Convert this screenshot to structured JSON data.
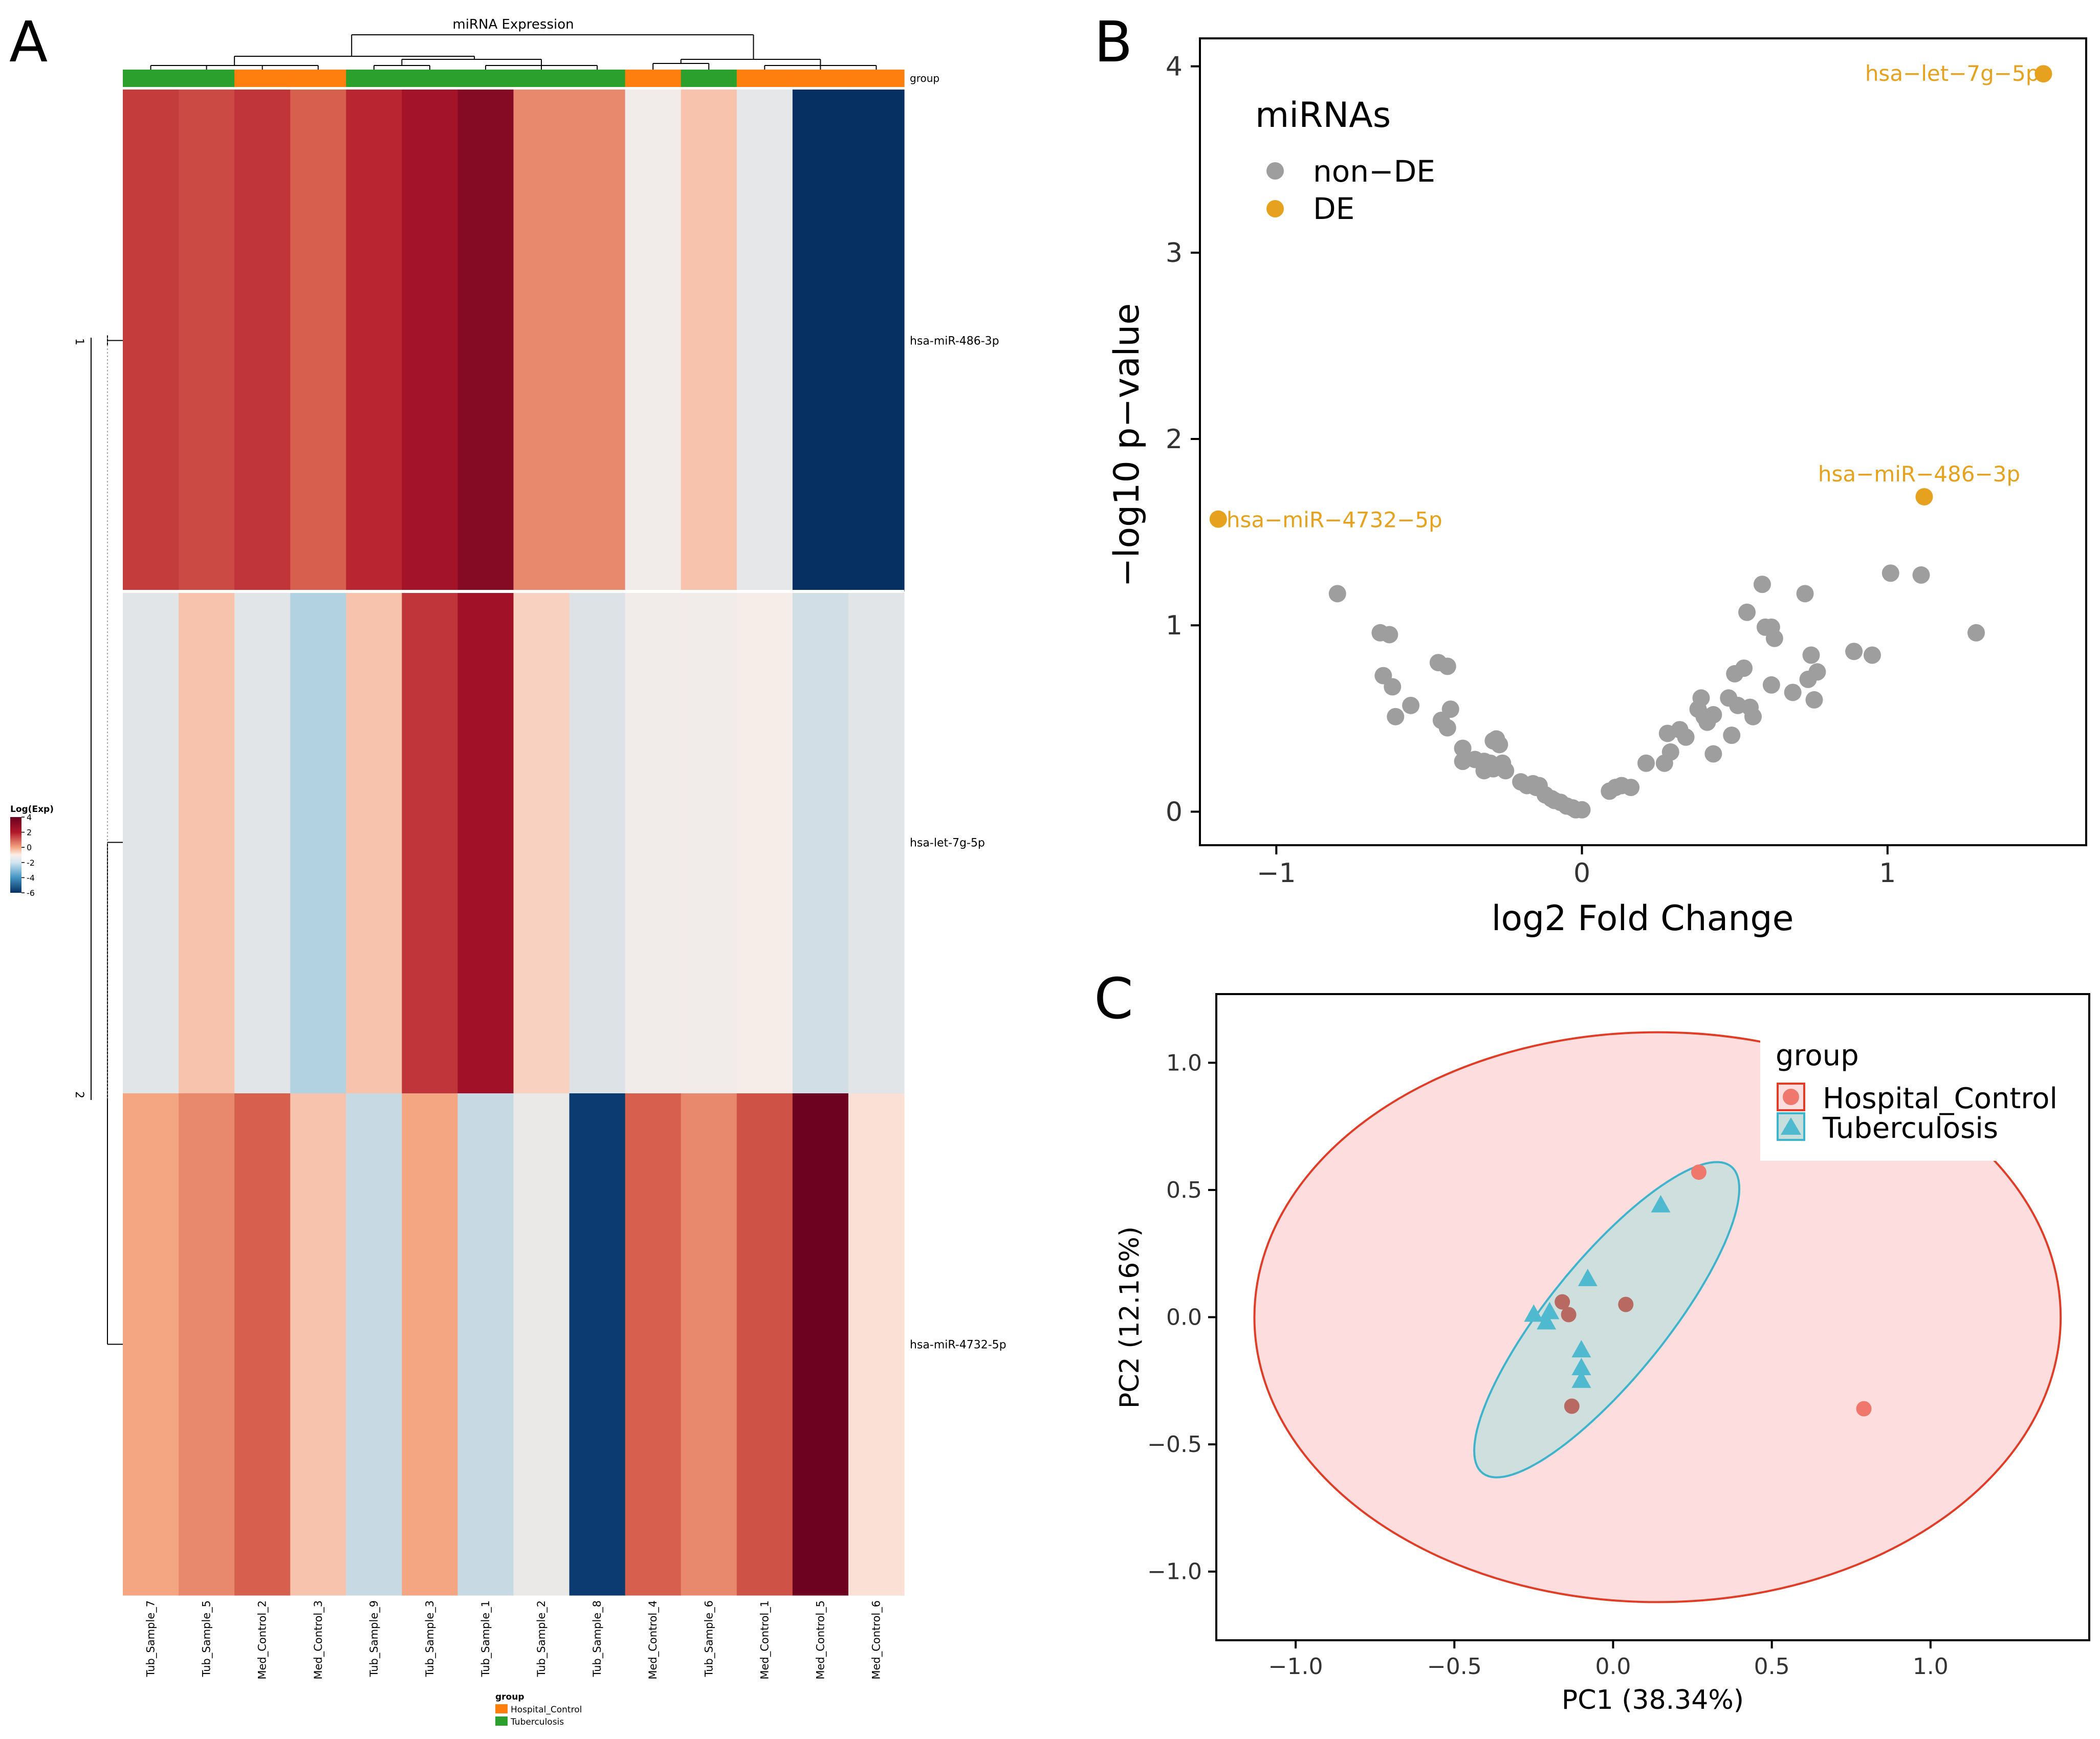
{
  "panel_labels": {
    "a": "A",
    "b": "B",
    "c": "C"
  },
  "colors": {
    "group_Hospital_Control": "#FF7F0E",
    "group_Tuberculosis": "#2CA02C",
    "de": "#E6A21E",
    "non_de": "#9E9E9E",
    "pca_hospital": "#F0776B",
    "pca_tuberculosis": "#4FB9CF",
    "ellipse_hospital_stroke": "#E03C26",
    "ellipse_hospital_fill": "#FDDDDE",
    "ellipse_tb_stroke": "#3DB3CC",
    "ellipse_tb_fill": "#C6DFDD"
  },
  "chart_data": [
    {
      "type": "heatmap",
      "title": "miRNA Expression",
      "group_annotation_label": "group",
      "columns": [
        "Tub_Sample_7",
        "Tub_Sample_5",
        "Med_Control_2",
        "Med_Control_3",
        "Tub_Sample_9",
        "Tub_Sample_3",
        "Tub_Sample_1",
        "Tub_Sample_2",
        "Tub_Sample_8",
        "Med_Control_4",
        "Tub_Sample_6",
        "Med_Control_1",
        "Med_Control_5",
        "Med_Control_6"
      ],
      "column_groups": [
        "Tuberculosis",
        "Tuberculosis",
        "Hospital_Control",
        "Hospital_Control",
        "Tuberculosis",
        "Tuberculosis",
        "Tuberculosis",
        "Tuberculosis",
        "Tuberculosis",
        "Hospital_Control",
        "Tuberculosis",
        "Hospital_Control",
        "Hospital_Control",
        "Hospital_Control"
      ],
      "rows": [
        "hsa-miR-486-3p",
        "hsa-let-7g-5p",
        "hsa-miR-4732-5p"
      ],
      "row_split_labels": [
        "1",
        "2"
      ],
      "values": [
        [
          2.5,
          2.3,
          2.6,
          2.0,
          2.8,
          3.6,
          4.8,
          1.4,
          1.4,
          -0.2,
          0.6,
          -0.4,
          -6.0,
          -6.0
        ],
        [
          -0.5,
          0.6,
          -0.5,
          -1.4,
          0.6,
          2.6,
          3.7,
          0.4,
          -0.6,
          -0.2,
          -0.2,
          -0.1,
          -0.8,
          -0.5
        ],
        [
          1.0,
          1.4,
          2.0,
          0.6,
          -1.0,
          1.0,
          -1.0,
          -0.3,
          -5.6,
          2.0,
          1.4,
          2.2,
          5.8,
          0.2
        ]
      ],
      "legend": {
        "title": "Log(Exp)",
        "ticks": [
          4,
          2,
          0,
          -2,
          -4,
          -6
        ],
        "range": [
          -6,
          4
        ]
      },
      "group_legend": {
        "title": "group",
        "entries": [
          "Hospital_Control",
          "Tuberculosis"
        ]
      }
    },
    {
      "type": "scatter",
      "subtype": "volcano",
      "xlabel": "log2 Fold Change",
      "ylabel": "−log10 p−value",
      "xlim": [
        -1.25,
        1.65
      ],
      "ylim": [
        -0.18,
        4.15
      ],
      "xticks": [
        -1,
        0,
        1
      ],
      "xtick_labels": [
        "−1",
        "0",
        "1"
      ],
      "yticks": [
        0,
        1,
        2,
        3,
        4
      ],
      "legend": {
        "title": "miRNAs",
        "entries": [
          "non−DE",
          "DE"
        ]
      },
      "series": [
        {
          "name": "non-DE",
          "points": [
            [
              -0.8,
              1.17
            ],
            [
              -0.66,
              0.96
            ],
            [
              -0.63,
              0.95
            ],
            [
              -0.65,
              0.73
            ],
            [
              -0.62,
              0.67
            ],
            [
              -0.61,
              0.51
            ],
            [
              -0.56,
              0.57
            ],
            [
              -0.47,
              0.8
            ],
            [
              -0.44,
              0.78
            ],
            [
              -0.46,
              0.49
            ],
            [
              -0.43,
              0.55
            ],
            [
              -0.44,
              0.45
            ],
            [
              -0.39,
              0.34
            ],
            [
              -0.39,
              0.27
            ],
            [
              -0.35,
              0.28
            ],
            [
              -0.32,
              0.27
            ],
            [
              -0.3,
              0.26
            ],
            [
              -0.29,
              0.38
            ],
            [
              -0.28,
              0.39
            ],
            [
              -0.27,
              0.36
            ],
            [
              -0.26,
              0.26
            ],
            [
              -0.25,
              0.22
            ],
            [
              -0.29,
              0.23
            ],
            [
              -0.32,
              0.22
            ],
            [
              -0.2,
              0.16
            ],
            [
              -0.18,
              0.14
            ],
            [
              -0.16,
              0.15
            ],
            [
              -0.15,
              0.13
            ],
            [
              -0.14,
              0.14
            ],
            [
              -0.12,
              0.09
            ],
            [
              -0.1,
              0.07
            ],
            [
              -0.09,
              0.06
            ],
            [
              -0.07,
              0.05
            ],
            [
              -0.05,
              0.03
            ],
            [
              -0.03,
              0.02
            ],
            [
              -0.02,
              0.01
            ],
            [
              0.0,
              0.01
            ],
            [
              0.09,
              0.11
            ],
            [
              0.11,
              0.13
            ],
            [
              0.13,
              0.14
            ],
            [
              0.16,
              0.13
            ],
            [
              0.21,
              0.26
            ],
            [
              0.27,
              0.26
            ],
            [
              0.28,
              0.42
            ],
            [
              0.29,
              0.32
            ],
            [
              0.32,
              0.44
            ],
            [
              0.34,
              0.4
            ],
            [
              0.38,
              0.55
            ],
            [
              0.39,
              0.61
            ],
            [
              0.4,
              0.51
            ],
            [
              0.41,
              0.48
            ],
            [
              0.43,
              0.52
            ],
            [
              0.43,
              0.31
            ],
            [
              0.48,
              0.61
            ],
            [
              0.49,
              0.41
            ],
            [
              0.5,
              0.74
            ],
            [
              0.51,
              0.57
            ],
            [
              0.53,
              0.77
            ],
            [
              0.54,
              1.07
            ],
            [
              0.55,
              0.56
            ],
            [
              0.56,
              0.51
            ],
            [
              0.59,
              1.22
            ],
            [
              0.6,
              0.99
            ],
            [
              0.62,
              0.99
            ],
            [
              0.62,
              0.68
            ],
            [
              0.63,
              0.93
            ],
            [
              0.69,
              0.64
            ],
            [
              0.73,
              1.17
            ],
            [
              0.75,
              0.84
            ],
            [
              0.74,
              0.71
            ],
            [
              0.76,
              0.6
            ],
            [
              0.77,
              0.75
            ],
            [
              0.89,
              0.86
            ],
            [
              0.95,
              0.84
            ],
            [
              1.01,
              1.28
            ],
            [
              1.11,
              1.27
            ],
            [
              1.29,
              0.96
            ]
          ]
        },
        {
          "name": "DE",
          "points": [
            [
              -1.19,
              1.57
            ],
            [
              1.12,
              1.69
            ],
            [
              1.51,
              3.96
            ]
          ]
        }
      ],
      "annotations": [
        {
          "label": "hsa−let−7g−5p",
          "x": 1.51,
          "y": 3.96
        },
        {
          "label": "hsa−miR−486−3p",
          "x": 1.12,
          "y": 1.69
        },
        {
          "label": "hsa−miR−4732−5p",
          "x": -1.19,
          "y": 1.57
        }
      ]
    },
    {
      "type": "scatter",
      "subtype": "pca",
      "xlabel": "PC1 (38.34%)",
      "ylabel": "PC2 (12.16%)",
      "xlim": [
        -1.25,
        1.5
      ],
      "ylim": [
        -1.27,
        1.27
      ],
      "xticks": [
        -1.0,
        -0.5,
        0.0,
        0.5,
        1.0
      ],
      "xtick_labels": [
        "−1.0",
        "−0.5",
        "0.0",
        "0.5",
        "1.0"
      ],
      "yticks": [
        1.0,
        0.5,
        0.0,
        -0.5,
        -1.0
      ],
      "ytick_labels": [
        "1.0",
        "0.5",
        "0.0",
        "−0.5",
        "−1.0"
      ],
      "legend": {
        "title": "group",
        "entries": [
          "Hospital_Control",
          "Tuberculosis"
        ]
      },
      "series": [
        {
          "name": "Hospital_Control",
          "marker": "circle",
          "points": [
            [
              0.27,
              0.57
            ],
            [
              -0.16,
              0.06
            ],
            [
              -0.14,
              0.01
            ],
            [
              0.04,
              0.05
            ],
            [
              -0.13,
              -0.35
            ],
            [
              0.79,
              -0.36
            ]
          ]
        },
        {
          "name": "Tuberculosis",
          "marker": "triangle",
          "points": [
            [
              0.15,
              0.44
            ],
            [
              -0.08,
              0.15
            ],
            [
              -0.25,
              0.01
            ],
            [
              -0.2,
              0.02
            ],
            [
              -0.21,
              -0.02
            ],
            [
              -0.1,
              -0.13
            ],
            [
              -0.1,
              -0.2
            ],
            [
              -0.1,
              -0.25
            ]
          ]
        }
      ],
      "ellipses": [
        {
          "group": "Hospital_Control",
          "cx": 0.14,
          "cy": 0.0,
          "rx": 1.27,
          "ry": 1.12,
          "angle_deg": 0
        },
        {
          "group": "Tuberculosis",
          "cx": -0.02,
          "cy": -0.01,
          "rx": 0.72,
          "ry": 0.2,
          "angle_deg": 58
        }
      ]
    }
  ]
}
